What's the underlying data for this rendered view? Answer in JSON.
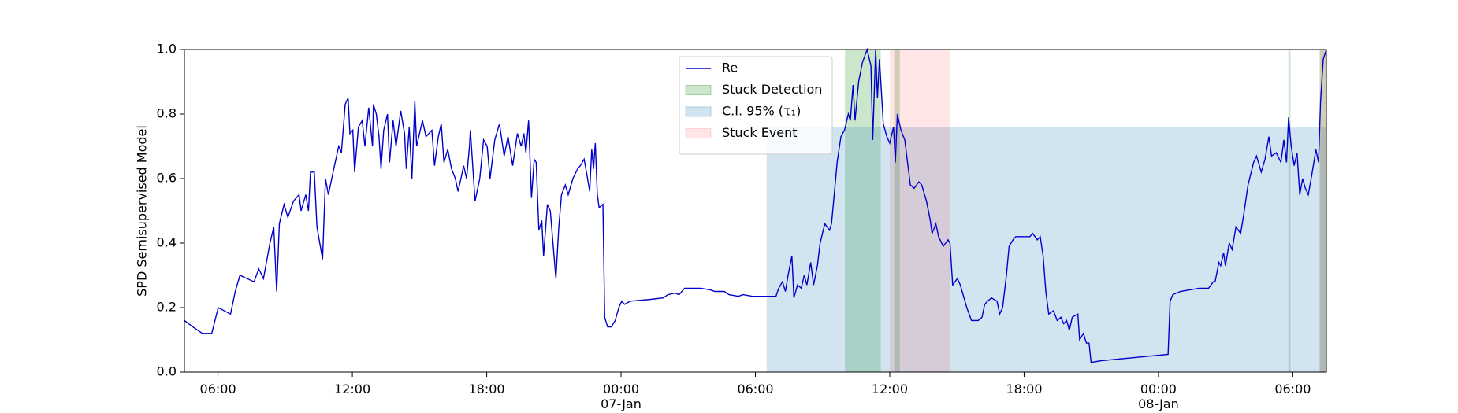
{
  "chart_data": {
    "type": "line",
    "y_label": "SPD Semisupervised Model",
    "xlim": [
      4.5,
      55.5
    ],
    "xticks": [
      {
        "value": 6,
        "label": "06:00"
      },
      {
        "value": 12,
        "label": "12:00"
      },
      {
        "value": 18,
        "label": "18:00"
      },
      {
        "value": 24,
        "label": "00:00\n07-Jan\n1900"
      },
      {
        "value": 30,
        "label": "06:00"
      },
      {
        "value": 36,
        "label": "12:00"
      },
      {
        "value": 42,
        "label": "18:00"
      },
      {
        "value": 48,
        "label": "00:00\n08-Jan"
      },
      {
        "value": 54,
        "label": "06:00"
      }
    ],
    "ylim": [
      0,
      1
    ],
    "yticks": [
      {
        "value": 0,
        "label": "0.0"
      },
      0.2,
      0.4,
      0.6,
      0.8,
      {
        "value": 1,
        "label": "1.0"
      }
    ],
    "grid": false,
    "legend": "upper center",
    "series": [
      {
        "name": "Re",
        "color": "#0000cc",
        "x": [
          4.5,
          4.88,
          5.3,
          5.72,
          6.01,
          6.56,
          6.77,
          6.98,
          7.61,
          7.82,
          8.03,
          8.32,
          8.49,
          8.62,
          8.74,
          8.95,
          9.12,
          9.37,
          9.62,
          9.71,
          9.92,
          10.04,
          10.13,
          10.3,
          10.42,
          10.67,
          10.8,
          10.93,
          11.14,
          11.39,
          11.51,
          11.68,
          11.81,
          11.89,
          12.02,
          12.1,
          12.27,
          12.44,
          12.56,
          12.73,
          12.9,
          12.94,
          13.07,
          13.19,
          13.28,
          13.4,
          13.57,
          13.66,
          13.82,
          13.95,
          14.16,
          14.33,
          14.41,
          14.54,
          14.66,
          14.79,
          14.87,
          15.13,
          15.29,
          15.55,
          15.67,
          15.84,
          15.97,
          16.09,
          16.26,
          16.43,
          16.6,
          16.72,
          16.85,
          16.97,
          17.1,
          17.23,
          17.27,
          17.48,
          17.69,
          17.86,
          18.02,
          18.15,
          18.36,
          18.57,
          18.78,
          18.95,
          19.16,
          19.37,
          19.54,
          19.66,
          19.75,
          19.87,
          20.0,
          20.12,
          20.21,
          20.33,
          20.46,
          20.54,
          20.71,
          20.84,
          21.09,
          21.22,
          21.34,
          21.51,
          21.64,
          21.85,
          22.06,
          22.18,
          22.35,
          22.48,
          22.6,
          22.69,
          22.77,
          22.85,
          22.94,
          23.02,
          23.19,
          23.27,
          23.4,
          23.57,
          23.74,
          23.9,
          24.03,
          24.16,
          24.41,
          25.25,
          25.88,
          26.09,
          26.42,
          26.59,
          26.84,
          27.56,
          27.98,
          28.19,
          28.61,
          28.82,
          29.24,
          29.45,
          29.87,
          30.92,
          31.04,
          31.21,
          31.34,
          31.46,
          31.63,
          31.72,
          31.88,
          32.05,
          32.18,
          32.3,
          32.47,
          32.6,
          32.77,
          32.89,
          33.1,
          33.31,
          33.4,
          33.52,
          33.65,
          33.82,
          33.98,
          34.15,
          34.24,
          34.36,
          34.45,
          34.61,
          34.78,
          34.99,
          35.16,
          35.24,
          35.37,
          35.45,
          35.54,
          35.62,
          35.71,
          35.87,
          36.0,
          36.17,
          36.25,
          36.34,
          36.5,
          36.67,
          36.92,
          37.09,
          37.3,
          37.43,
          37.64,
          37.81,
          37.89,
          38.06,
          38.18,
          38.39,
          38.6,
          38.69,
          38.81,
          39.02,
          39.15,
          39.44,
          39.65,
          39.95,
          40.12,
          40.24,
          40.37,
          40.54,
          40.79,
          40.91,
          41.04,
          41.21,
          41.33,
          41.5,
          41.63,
          42.26,
          42.38,
          42.59,
          42.72,
          42.85,
          42.97,
          43.1,
          43.31,
          43.48,
          43.64,
          43.77,
          43.9,
          44.02,
          44.15,
          44.4,
          44.48,
          44.65,
          44.78,
          44.9,
          44.99,
          45.41,
          48.43,
          48.52,
          48.64,
          48.98,
          49.82,
          50.24,
          50.45,
          50.53,
          50.7,
          50.78,
          50.91,
          50.99,
          51.16,
          51.29,
          51.46,
          51.67,
          51.79,
          52.0,
          52.25,
          52.38,
          52.59,
          52.76,
          52.93,
          53.05,
          53.26,
          53.47,
          53.6,
          53.72,
          53.81,
          53.93,
          54.06,
          54.19,
          54.31,
          54.44,
          54.56,
          54.69,
          54.82,
          54.94,
          55.03,
          55.15,
          55.24,
          55.36,
          55.5
        ],
        "values": [
          0.16,
          0.14,
          0.12,
          0.12,
          0.2,
          0.18,
          0.25,
          0.3,
          0.28,
          0.32,
          0.29,
          0.4,
          0.45,
          0.25,
          0.46,
          0.52,
          0.48,
          0.53,
          0.55,
          0.5,
          0.55,
          0.5,
          0.62,
          0.62,
          0.45,
          0.35,
          0.6,
          0.55,
          0.62,
          0.7,
          0.68,
          0.83,
          0.85,
          0.74,
          0.75,
          0.62,
          0.76,
          0.78,
          0.7,
          0.82,
          0.7,
          0.83,
          0.8,
          0.73,
          0.63,
          0.75,
          0.8,
          0.65,
          0.78,
          0.7,
          0.81,
          0.74,
          0.63,
          0.76,
          0.6,
          0.84,
          0.7,
          0.78,
          0.73,
          0.75,
          0.64,
          0.73,
          0.77,
          0.65,
          0.69,
          0.63,
          0.6,
          0.56,
          0.6,
          0.64,
          0.6,
          0.7,
          0.75,
          0.53,
          0.6,
          0.72,
          0.7,
          0.6,
          0.72,
          0.77,
          0.67,
          0.73,
          0.64,
          0.74,
          0.7,
          0.74,
          0.68,
          0.78,
          0.54,
          0.66,
          0.65,
          0.44,
          0.47,
          0.36,
          0.52,
          0.5,
          0.29,
          0.45,
          0.55,
          0.58,
          0.55,
          0.6,
          0.63,
          0.64,
          0.66,
          0.61,
          0.56,
          0.69,
          0.63,
          0.71,
          0.55,
          0.51,
          0.52,
          0.17,
          0.14,
          0.14,
          0.16,
          0.2,
          0.22,
          0.21,
          0.22,
          0.225,
          0.23,
          0.24,
          0.245,
          0.24,
          0.26,
          0.26,
          0.255,
          0.25,
          0.25,
          0.24,
          0.235,
          0.24,
          0.235,
          0.235,
          0.26,
          0.28,
          0.25,
          0.3,
          0.36,
          0.23,
          0.27,
          0.26,
          0.3,
          0.27,
          0.34,
          0.27,
          0.33,
          0.4,
          0.46,
          0.44,
          0.46,
          0.55,
          0.65,
          0.73,
          0.75,
          0.8,
          0.78,
          0.89,
          0.78,
          0.9,
          0.96,
          1.0,
          0.95,
          0.72,
          1.0,
          0.85,
          0.97,
          0.88,
          0.77,
          0.73,
          0.71,
          0.76,
          0.65,
          0.8,
          0.75,
          0.72,
          0.58,
          0.57,
          0.59,
          0.58,
          0.53,
          0.47,
          0.43,
          0.46,
          0.42,
          0.39,
          0.41,
          0.4,
          0.27,
          0.29,
          0.27,
          0.2,
          0.16,
          0.16,
          0.17,
          0.21,
          0.22,
          0.23,
          0.22,
          0.18,
          0.2,
          0.3,
          0.39,
          0.41,
          0.42,
          0.42,
          0.43,
          0.41,
          0.42,
          0.36,
          0.25,
          0.18,
          0.19,
          0.16,
          0.17,
          0.15,
          0.16,
          0.13,
          0.17,
          0.18,
          0.1,
          0.12,
          0.09,
          0.09,
          0.03,
          0.035,
          0.055,
          0.22,
          0.24,
          0.25,
          0.26,
          0.26,
          0.28,
          0.28,
          0.34,
          0.33,
          0.37,
          0.33,
          0.4,
          0.38,
          0.45,
          0.43,
          0.48,
          0.58,
          0.65,
          0.67,
          0.62,
          0.66,
          0.73,
          0.67,
          0.68,
          0.65,
          0.72,
          0.65,
          0.79,
          0.7,
          0.64,
          0.68,
          0.55,
          0.6,
          0.57,
          0.55,
          0.6,
          0.65,
          0.69,
          0.65,
          0.84,
          0.97,
          1.0
        ]
      }
    ],
    "regions": [
      {
        "name": "Stuck Detection",
        "color": "#008000",
        "alpha": 0.2,
        "y": [
          0,
          1
        ],
        "spans": [
          [
            34.0,
            35.6
          ],
          [
            36.2,
            36.45
          ],
          [
            53.8,
            53.9
          ],
          [
            55.2,
            55.5
          ]
        ]
      },
      {
        "name": "C.I. 95% (τ₁)",
        "color": "#1f77b4",
        "alpha": 0.2,
        "y": [
          0,
          0.76
        ],
        "spans": [
          [
            30.5,
            55.5
          ]
        ]
      },
      {
        "name": "Stuck Event",
        "color": "#ff0000",
        "alpha": 0.1,
        "y": [
          0,
          1
        ],
        "spans": [
          [
            36.0,
            38.7
          ],
          [
            55.2,
            55.5
          ]
        ]
      }
    ]
  }
}
